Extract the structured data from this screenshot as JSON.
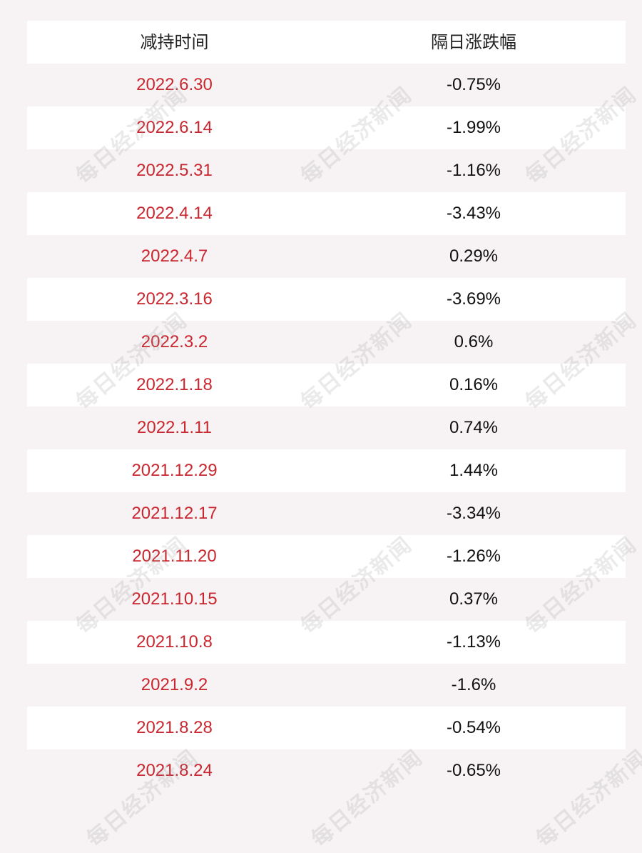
{
  "table": {
    "headers": {
      "date": "减持时间",
      "change": "隔日涨跌幅"
    },
    "rows": [
      {
        "date": "2022.6.30",
        "change": "-0.75%"
      },
      {
        "date": "2022.6.14",
        "change": "-1.99%"
      },
      {
        "date": "2022.5.31",
        "change": "-1.16%"
      },
      {
        "date": "2022.4.14",
        "change": "-3.43%"
      },
      {
        "date": "2022.4.7",
        "change": "0.29%"
      },
      {
        "date": "2022.3.16",
        "change": "-3.69%"
      },
      {
        "date": "2022.3.2",
        "change": "0.6%"
      },
      {
        "date": "2022.1.18",
        "change": "0.16%"
      },
      {
        "date": "2022.1.11",
        "change": "0.74%"
      },
      {
        "date": "2021.12.29",
        "change": "1.44%"
      },
      {
        "date": "2021.12.17",
        "change": "-3.34%"
      },
      {
        "date": "2021.11.20",
        "change": "-1.26%"
      },
      {
        "date": "2021.10.15",
        "change": "0.37%"
      },
      {
        "date": "2021.10.8",
        "change": "-1.13%"
      },
      {
        "date": "2021.9.2",
        "change": "-1.6%"
      },
      {
        "date": "2021.8.28",
        "change": "-0.54%"
      },
      {
        "date": "2021.8.24",
        "change": "-0.65%"
      }
    ]
  },
  "watermark": "每日经济新闻",
  "colors": {
    "date_text": "#c9272f",
    "value_text": "#111111",
    "row_white": "#ffffff",
    "row_tinted": "#f7f3f4"
  }
}
